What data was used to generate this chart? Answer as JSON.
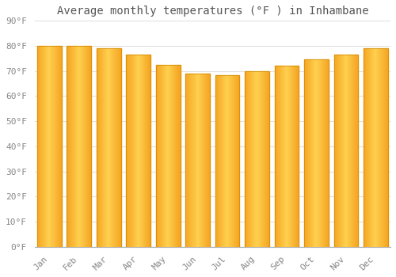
{
  "months": [
    "Jan",
    "Feb",
    "Mar",
    "Apr",
    "May",
    "Jun",
    "Jul",
    "Aug",
    "Sep",
    "Oct",
    "Nov",
    "Dec"
  ],
  "values": [
    80.1,
    80.1,
    79.0,
    76.5,
    72.5,
    69.0,
    68.5,
    70.0,
    72.0,
    74.5,
    76.5,
    79.0
  ],
  "bar_color_outer": "#F5A623",
  "bar_color_inner": "#FFD050",
  "background_color": "#FFFFFF",
  "plot_bg_color": "#FFFFFF",
  "grid_color": "#E0E0E0",
  "title": "Average monthly temperatures (°F ) in Inhambane",
  "title_fontsize": 10,
  "tick_fontsize": 8,
  "ylim": [
    0,
    90
  ],
  "yticks": [
    0,
    10,
    20,
    30,
    40,
    50,
    60,
    70,
    80,
    90
  ],
  "ytick_labels": [
    "0°F",
    "10°F",
    "20°F",
    "30°F",
    "40°F",
    "50°F",
    "60°F",
    "70°F",
    "80°F",
    "90°F"
  ]
}
